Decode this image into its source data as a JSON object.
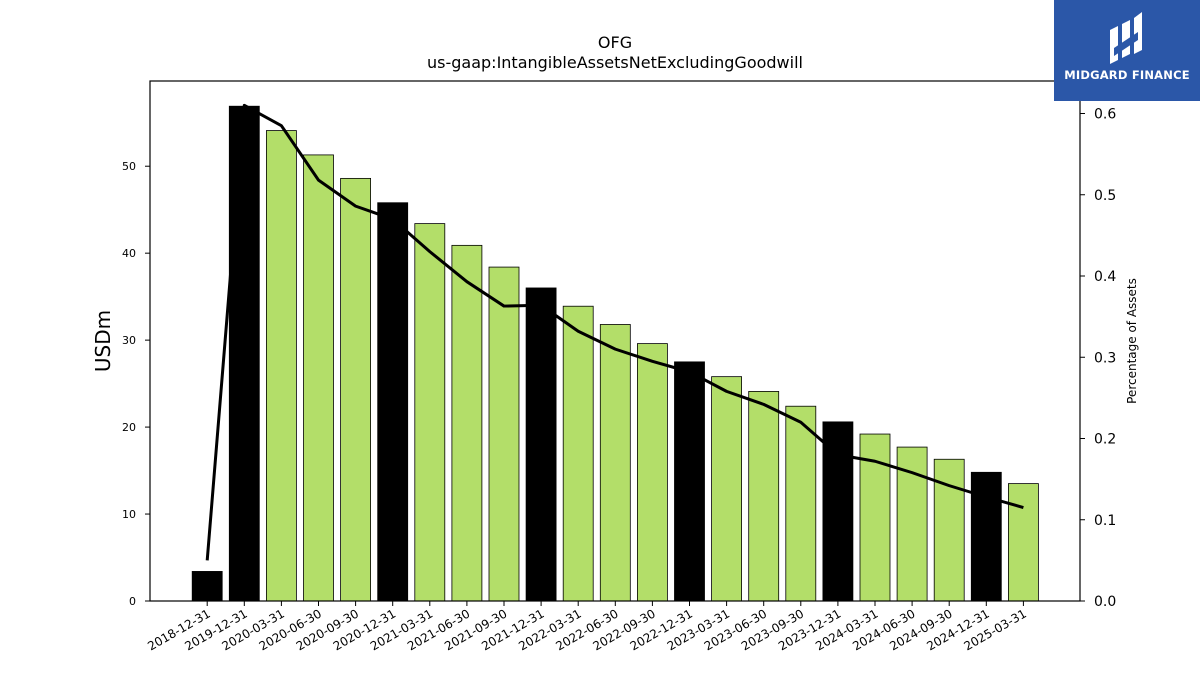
{
  "brand": {
    "name": "MIDGARD FINANCE",
    "background": "#2b57a8"
  },
  "colors": {
    "bar_annual": "#000000",
    "bar_quarterly": "#b3de69",
    "line": "#000000"
  },
  "chart_data": {
    "type": "bar",
    "title": "OFG",
    "subtitle": "us-gaap:IntangibleAssetsNetExcludingGoodwill",
    "ylabel": "USDm",
    "y2label": "Percentage of Assets",
    "ylim": [
      0,
      59.8
    ],
    "y2lim": [
      0,
      0.64
    ],
    "yticks": [
      0,
      10,
      20,
      30,
      40,
      50
    ],
    "y2ticks": [
      0.0,
      0.1,
      0.2,
      0.3,
      0.4,
      0.5,
      0.6
    ],
    "categories": [
      "2018-12-31",
      "2019-12-31",
      "2020-03-31",
      "2020-06-30",
      "2020-09-30",
      "2020-12-31",
      "2021-03-31",
      "2021-06-30",
      "2021-09-30",
      "2021-12-31",
      "2022-03-31",
      "2022-06-30",
      "2022-09-30",
      "2022-12-31",
      "2023-03-31",
      "2023-06-30",
      "2023-09-30",
      "2023-12-31",
      "2024-03-31",
      "2024-06-30",
      "2024-09-30",
      "2024-12-31",
      "2025-03-31"
    ],
    "series": [
      {
        "axis": "left",
        "kind": "bar",
        "values": [
          3.4,
          56.9,
          54.1,
          51.3,
          48.6,
          45.8,
          43.4,
          40.9,
          38.4,
          36.0,
          33.9,
          31.8,
          29.6,
          27.5,
          25.8,
          24.1,
          22.4,
          20.6,
          19.2,
          17.7,
          16.3,
          14.8,
          13.5
        ],
        "annual": [
          true,
          true,
          false,
          false,
          false,
          true,
          false,
          false,
          false,
          true,
          false,
          false,
          false,
          true,
          false,
          false,
          false,
          true,
          false,
          false,
          false,
          true,
          false
        ]
      },
      {
        "axis": "right",
        "kind": "line",
        "values": [
          0.05,
          0.61,
          0.585,
          0.518,
          0.486,
          0.47,
          0.43,
          0.393,
          0.363,
          0.364,
          0.332,
          0.31,
          0.295,
          0.282,
          0.258,
          0.242,
          0.22,
          0.18,
          0.172,
          0.158,
          0.142,
          0.128,
          0.115
        ]
      }
    ],
    "grid": false,
    "legend": "none"
  }
}
